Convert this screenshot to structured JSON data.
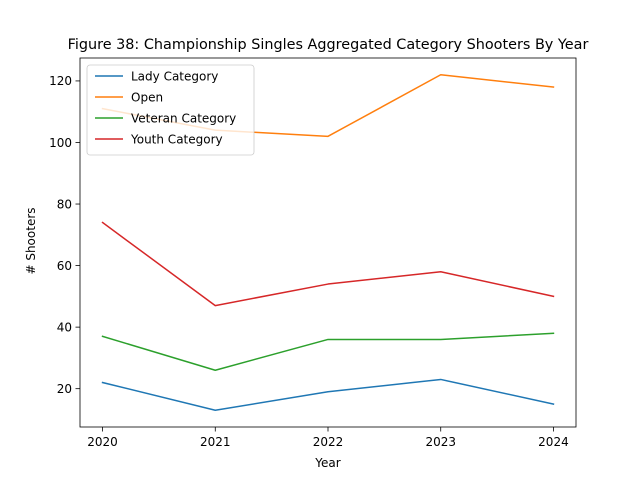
{
  "chart_data": {
    "type": "line",
    "title": "Figure 38: Championship Singles Aggregated Category Shooters By Year",
    "xlabel": "Year",
    "ylabel": "# Shooters",
    "x": [
      "2020",
      "2021",
      "2022",
      "2023",
      "2024"
    ],
    "xlim": [
      2019.8,
      2024.2
    ],
    "ylim": [
      7.55,
      127.45
    ],
    "yticks": [
      20,
      40,
      60,
      80,
      100,
      120
    ],
    "grid": false,
    "legend_position": "upper left",
    "series": [
      {
        "name": "Lady Category",
        "color": "#1f77b4",
        "values": [
          22,
          13,
          19,
          23,
          15
        ]
      },
      {
        "name": "Open",
        "color": "#ff7f0e",
        "values": [
          111,
          104,
          102,
          122,
          118
        ]
      },
      {
        "name": "Veteran Category",
        "color": "#2ca02c",
        "values": [
          37,
          26,
          36,
          36,
          38
        ]
      },
      {
        "name": "Youth Category",
        "color": "#d62728",
        "values": [
          74,
          47,
          54,
          58,
          50
        ]
      }
    ]
  }
}
